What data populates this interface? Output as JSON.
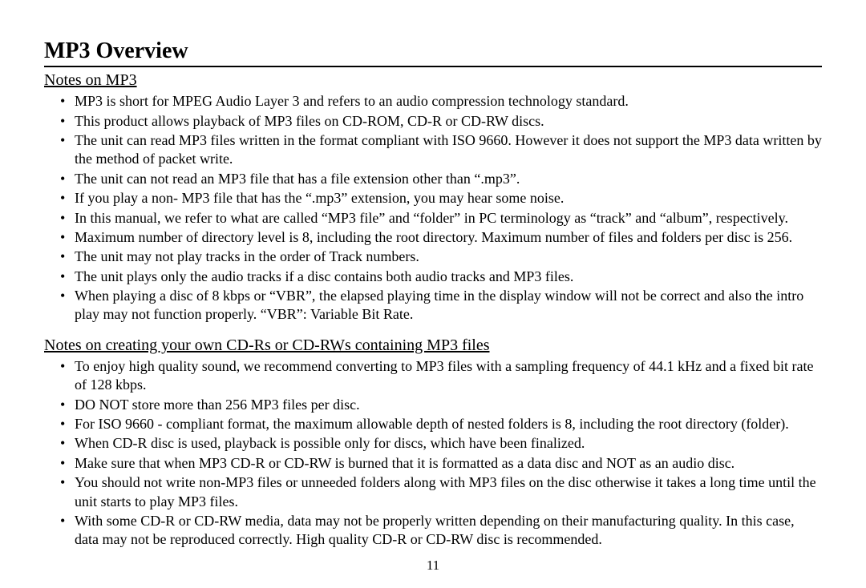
{
  "title": "MP3 Overview",
  "section1": {
    "heading": "Notes on MP3",
    "items": [
      "MP3 is short for MPEG Audio Layer 3 and refers to an audio compression technology standard.",
      "This product allows playback of MP3 files on CD-ROM, CD-R or CD-RW discs.",
      "The unit can read MP3 files written in the format compliant with ISO 9660. However it does not support the MP3 data written by the method of packet write.",
      "The unit can not read an MP3 file that has a file extension other than “.mp3”.",
      "If you play a non- MP3 file that has the “.mp3” extension, you may hear some noise.",
      "In this manual, we refer to what are called “MP3 file” and “folder” in PC terminology as “track” and “album”, respectively.",
      "Maximum number of directory level is 8, including the root directory. Maximum number of files and folders per disc is 256.",
      "The unit may not play tracks in the order of Track numbers.",
      "The unit plays only the audio tracks if a disc contains both audio tracks and MP3 files.",
      "When playing a disc of 8 kbps or “VBR”, the elapsed playing time in the display window will not be correct and also the intro play may not function properly. “VBR”: Variable Bit Rate."
    ]
  },
  "section2": {
    "heading": "Notes on creating your own CD-Rs or CD-RWs containing MP3 files",
    "items": [
      "To enjoy high quality sound, we recommend converting to MP3 files with a sampling frequency of 44.1 kHz and a fixed bit rate of 128 kbps.",
      "DO NOT store more than 256 MP3 files per disc.",
      "For ISO 9660 - compliant format, the maximum allowable depth of nested folders is 8, including the root directory (folder).",
      "When CD-R disc is used, playback is possible only for discs, which have been finalized.",
      "Make sure that when MP3 CD-R or CD-RW is burned that it is formatted as a data disc and NOT as an audio disc.",
      "You should not write non-MP3 files or unneeded folders along with MP3 files on the disc otherwise it takes a long time until the unit starts to play MP3 files.",
      "With some CD-R or CD-RW media, data may not be properly written depending on their manufacturing quality. In this case, data may not be reproduced correctly. High quality CD-R or CD-RW disc is recommended."
    ]
  },
  "pageNumber": "11"
}
